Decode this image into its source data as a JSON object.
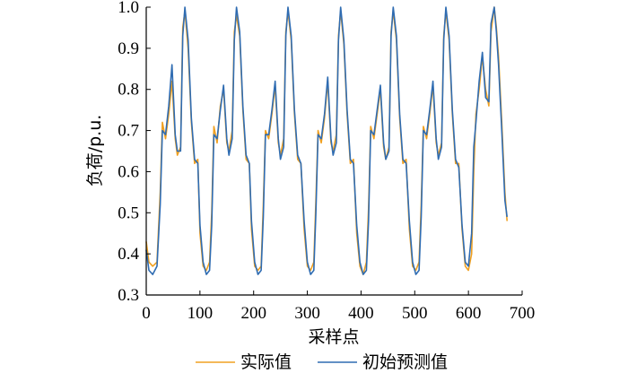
{
  "chart_data": {
    "type": "line",
    "title": "",
    "xlabel": "采样点",
    "ylabel": "负荷/p.u.",
    "xlim": [
      0,
      700
    ],
    "ylim": [
      0.3,
      1.0
    ],
    "xticks": [
      0,
      100,
      200,
      300,
      400,
      500,
      600,
      700
    ],
    "yticks": [
      0.3,
      0.4,
      0.5,
      0.6,
      0.7,
      0.8,
      0.9,
      1.0
    ],
    "xtick_labels": [
      "0",
      "100",
      "200",
      "300",
      "400",
      "500",
      "600",
      "700"
    ],
    "ytick_labels": [
      "0.3",
      "0.4",
      "0.5",
      "0.6",
      "0.7",
      "0.8",
      "0.9",
      "1.0"
    ],
    "grid": false,
    "legend_position": "bottom",
    "series": [
      {
        "name": "实际值",
        "color": "#F0A020",
        "x": [
          0,
          5,
          12,
          20,
          26,
          30,
          36,
          42,
          48,
          54,
          58,
          64,
          68,
          72,
          78,
          84,
          90,
          96,
          100,
          106,
          112,
          118,
          122,
          126,
          132,
          138,
          144,
          150,
          154,
          160,
          164,
          168,
          174,
          180,
          186,
          192,
          196,
          202,
          208,
          214,
          218,
          222,
          228,
          234,
          240,
          246,
          250,
          256,
          260,
          264,
          270,
          276,
          282,
          288,
          294,
          300,
          306,
          312,
          316,
          320,
          326,
          332,
          338,
          344,
          348,
          354,
          358,
          362,
          368,
          374,
          380,
          386,
          392,
          398,
          404,
          410,
          414,
          418,
          424,
          430,
          436,
          442,
          446,
          452,
          456,
          460,
          466,
          472,
          478,
          484,
          490,
          496,
          502,
          508,
          512,
          516,
          522,
          528,
          534,
          540,
          544,
          550,
          554,
          558,
          564,
          570,
          576,
          582,
          588,
          594,
          600,
          606,
          610,
          614,
          620,
          626,
          632,
          638,
          642,
          648,
          652,
          656,
          662,
          668,
          672
        ],
        "y": [
          0.43,
          0.38,
          0.37,
          0.38,
          0.55,
          0.72,
          0.68,
          0.74,
          0.82,
          0.68,
          0.64,
          0.66,
          0.95,
          0.99,
          0.9,
          0.72,
          0.62,
          0.63,
          0.45,
          0.37,
          0.36,
          0.38,
          0.5,
          0.71,
          0.67,
          0.76,
          0.8,
          0.67,
          0.65,
          0.7,
          0.94,
          0.98,
          0.93,
          0.75,
          0.63,
          0.62,
          0.46,
          0.37,
          0.36,
          0.37,
          0.52,
          0.7,
          0.68,
          0.74,
          0.81,
          0.67,
          0.64,
          0.68,
          0.94,
          0.99,
          0.92,
          0.74,
          0.63,
          0.62,
          0.46,
          0.37,
          0.36,
          0.38,
          0.53,
          0.7,
          0.67,
          0.73,
          0.82,
          0.67,
          0.65,
          0.69,
          0.93,
          0.99,
          0.91,
          0.74,
          0.62,
          0.63,
          0.45,
          0.37,
          0.35,
          0.38,
          0.51,
          0.71,
          0.68,
          0.74,
          0.8,
          0.66,
          0.63,
          0.66,
          0.94,
          0.99,
          0.92,
          0.73,
          0.62,
          0.63,
          0.46,
          0.37,
          0.36,
          0.38,
          0.52,
          0.71,
          0.68,
          0.74,
          0.81,
          0.67,
          0.64,
          0.67,
          0.93,
          0.99,
          0.92,
          0.74,
          0.62,
          0.62,
          0.46,
          0.37,
          0.36,
          0.4,
          0.6,
          0.74,
          0.8,
          0.88,
          0.8,
          0.76,
          0.94,
          1.0,
          0.95,
          0.88,
          0.72,
          0.55,
          0.48
        ]
      },
      {
        "name": "初始预测值",
        "color": "#2F6CB2",
        "x": [
          0,
          5,
          12,
          20,
          26,
          30,
          36,
          42,
          48,
          54,
          58,
          64,
          68,
          72,
          78,
          84,
          90,
          96,
          100,
          106,
          112,
          118,
          122,
          126,
          132,
          138,
          144,
          150,
          154,
          160,
          164,
          168,
          174,
          180,
          186,
          192,
          196,
          202,
          208,
          214,
          218,
          222,
          228,
          234,
          240,
          246,
          250,
          256,
          260,
          264,
          270,
          276,
          282,
          288,
          294,
          300,
          306,
          312,
          316,
          320,
          326,
          332,
          338,
          344,
          348,
          354,
          358,
          362,
          368,
          374,
          380,
          386,
          392,
          398,
          404,
          410,
          414,
          418,
          424,
          430,
          436,
          442,
          446,
          452,
          456,
          460,
          466,
          472,
          478,
          484,
          490,
          496,
          502,
          508,
          512,
          516,
          522,
          528,
          534,
          540,
          544,
          550,
          554,
          558,
          564,
          570,
          576,
          582,
          588,
          594,
          600,
          606,
          610,
          614,
          620,
          626,
          632,
          638,
          642,
          648,
          652,
          656,
          662,
          668,
          672
        ],
        "y": [
          0.41,
          0.36,
          0.35,
          0.37,
          0.52,
          0.7,
          0.69,
          0.76,
          0.86,
          0.69,
          0.65,
          0.65,
          0.93,
          1.0,
          0.92,
          0.73,
          0.63,
          0.62,
          0.47,
          0.38,
          0.35,
          0.36,
          0.47,
          0.69,
          0.68,
          0.75,
          0.81,
          0.68,
          0.64,
          0.68,
          0.92,
          1.0,
          0.94,
          0.76,
          0.64,
          0.62,
          0.48,
          0.38,
          0.35,
          0.36,
          0.49,
          0.69,
          0.69,
          0.75,
          0.82,
          0.68,
          0.63,
          0.66,
          0.93,
          1.0,
          0.93,
          0.75,
          0.64,
          0.62,
          0.48,
          0.38,
          0.35,
          0.36,
          0.5,
          0.69,
          0.68,
          0.74,
          0.83,
          0.68,
          0.64,
          0.67,
          0.92,
          1.0,
          0.92,
          0.75,
          0.63,
          0.62,
          0.47,
          0.38,
          0.35,
          0.36,
          0.48,
          0.7,
          0.69,
          0.75,
          0.81,
          0.67,
          0.63,
          0.65,
          0.93,
          1.0,
          0.93,
          0.74,
          0.63,
          0.62,
          0.48,
          0.38,
          0.35,
          0.36,
          0.49,
          0.7,
          0.69,
          0.75,
          0.82,
          0.68,
          0.63,
          0.66,
          0.92,
          1.0,
          0.93,
          0.75,
          0.63,
          0.61,
          0.47,
          0.38,
          0.37,
          0.45,
          0.66,
          0.72,
          0.82,
          0.89,
          0.78,
          0.77,
          0.96,
          1.0,
          0.94,
          0.86,
          0.7,
          0.53,
          0.49
        ]
      }
    ]
  }
}
